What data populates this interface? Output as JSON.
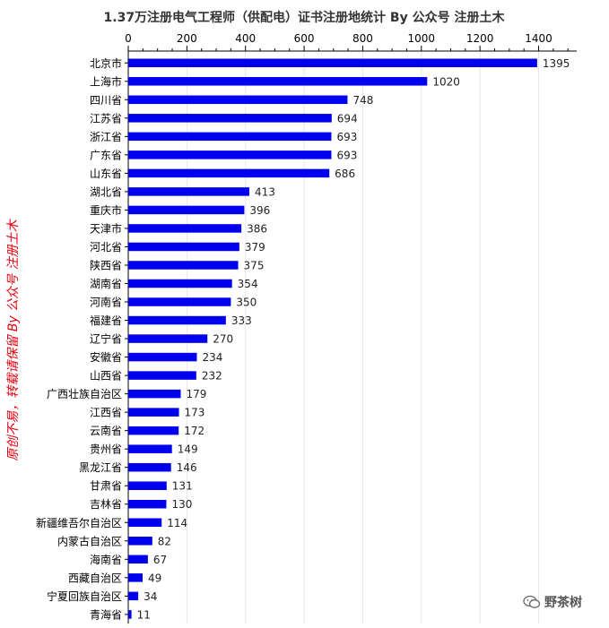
{
  "chart_data": {
    "type": "bar",
    "orientation": "horizontal",
    "title": "1.37万注册电气工程师（供配电）证书注册地统计 By 公众号 注册土木",
    "xlabel": "",
    "ylabel": "",
    "xlim": [
      0,
      1530
    ],
    "x_ticks": [
      "0",
      "200",
      "400",
      "600",
      "800",
      "1000",
      "1200",
      "1400"
    ],
    "x_axis_position": "top",
    "grid": true,
    "bar_color": "#0000ee",
    "categories": [
      "北京市",
      "上海市",
      "四川省",
      "江苏省",
      "浙江省",
      "广东省",
      "山东省",
      "湖北省",
      "重庆市",
      "天津市",
      "河北省",
      "陕西省",
      "湖南省",
      "河南省",
      "福建省",
      "辽宁省",
      "安徽省",
      "山西省",
      "广西壮族自治区",
      "江西省",
      "云南省",
      "贵州省",
      "黑龙江省",
      "甘肃省",
      "吉林省",
      "新疆维吾尔自治区",
      "内蒙古自治区",
      "海南省",
      "西藏自治区",
      "宁夏回族自治区",
      "青海省"
    ],
    "values": [
      1395,
      1020,
      748,
      694,
      693,
      693,
      686,
      413,
      396,
      386,
      379,
      375,
      354,
      350,
      333,
      270,
      234,
      232,
      179,
      173,
      172,
      149,
      146,
      131,
      130,
      114,
      82,
      67,
      49,
      34,
      11
    ],
    "value_labels": [
      "1395",
      "1020",
      "748",
      "694",
      "693",
      "693",
      "686",
      "413",
      "396",
      "386",
      "379",
      "375",
      "354",
      "350",
      "333",
      "270",
      "234",
      "232",
      "179",
      "173",
      "172",
      "149",
      "146",
      "131",
      "130",
      "114",
      "82",
      "67",
      "49",
      "34",
      "11"
    ]
  },
  "side_note": "原创不易，转载请保留 By 公众号 注册土木",
  "watermark": {
    "icon": "wechat-icon",
    "text": "野茶树"
  }
}
